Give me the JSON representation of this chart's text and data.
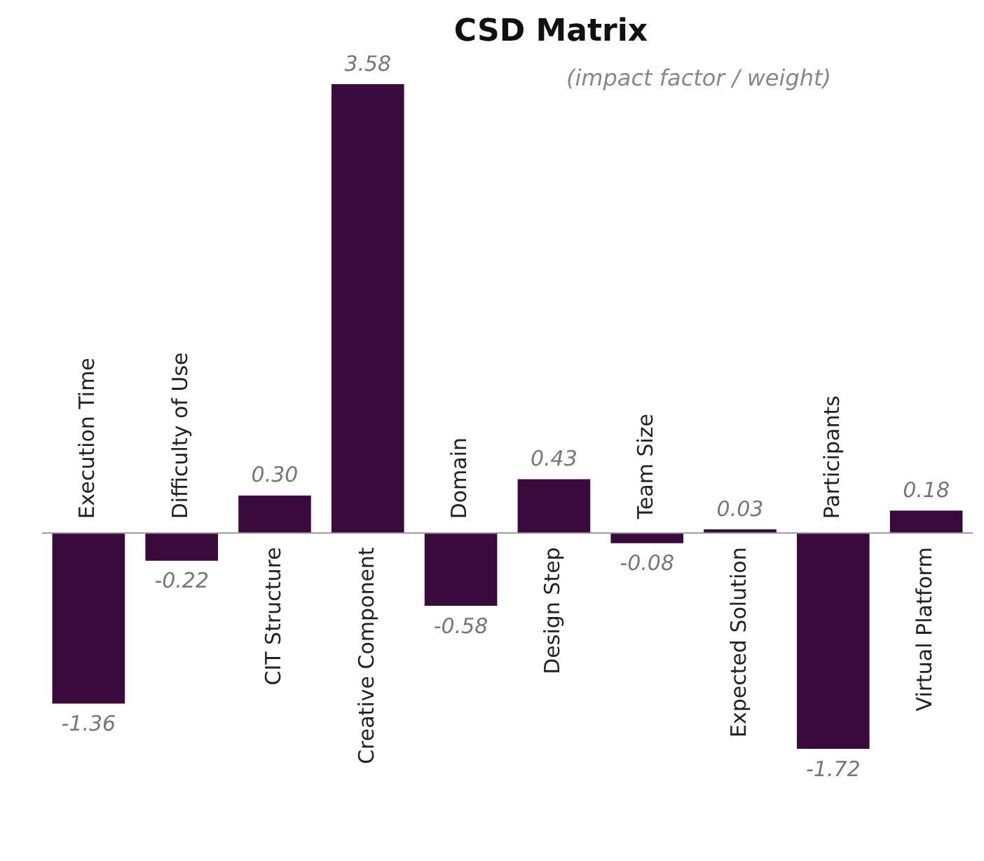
{
  "chart_data": {
    "type": "bar",
    "title": "CSD Matrix",
    "subtitle": "(impact factor / weight)",
    "categories": [
      "Execution Time",
      "Difficulty of Use",
      "CIT Structure",
      "Creative Component",
      "Domain",
      "Design Step",
      "Team Size",
      "Expected Solution",
      "Participants",
      "Virtual Platform"
    ],
    "values": [
      -1.36,
      -0.22,
      0.3,
      3.58,
      -0.58,
      0.43,
      -0.08,
      0.03,
      -1.72,
      0.18
    ],
    "value_labels": [
      "-1.36",
      "-0.22",
      "0.30",
      "3.58",
      "-0.58",
      "0.43",
      "-0.08",
      "0.03",
      "-1.72",
      "0.18"
    ],
    "color": "#3b0a3c",
    "legend": false
  }
}
